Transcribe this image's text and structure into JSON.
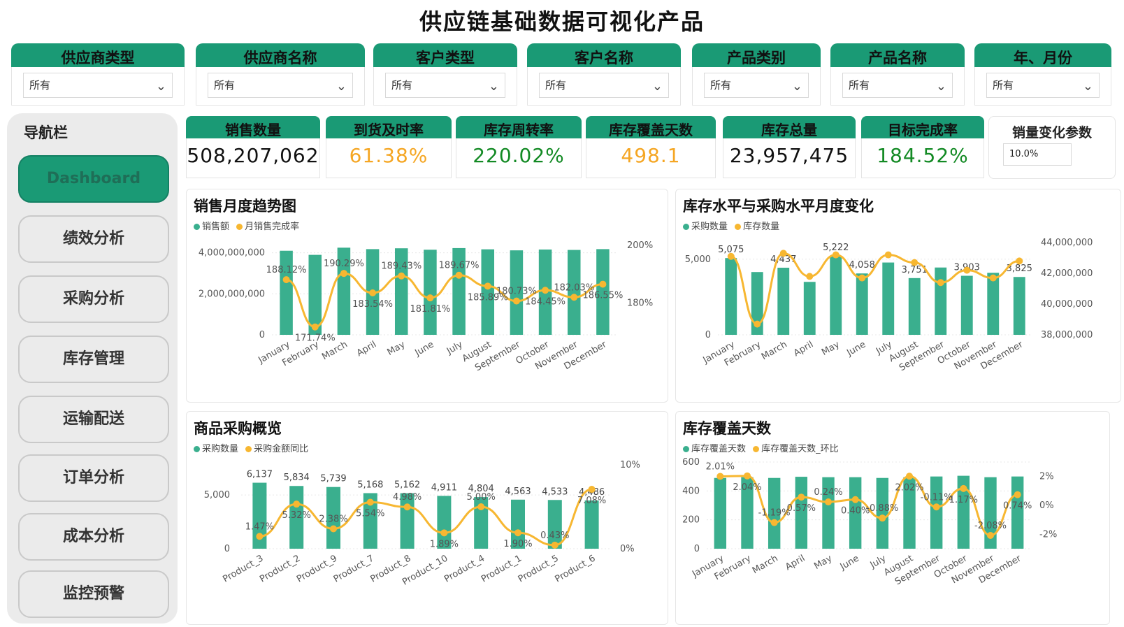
{
  "title": "供应链基础数据可视化产品",
  "filters": [
    {
      "label": "供应商类型",
      "value": "所有"
    },
    {
      "label": "供应商名称",
      "value": "所有"
    },
    {
      "label": "客户类型",
      "value": "所有"
    },
    {
      "label": "客户名称",
      "value": "所有"
    },
    {
      "label": "产品类别",
      "value": "所有"
    },
    {
      "label": "产品名称",
      "value": "所有"
    },
    {
      "label": "年、月份",
      "value": "所有"
    }
  ],
  "nav": {
    "title": "导航栏",
    "items": [
      "Dashboard",
      "绩效分析",
      "采购分析",
      "库存管理",
      "运输配送",
      "订单分析",
      "成本分析",
      "监控预警"
    ]
  },
  "kpis": [
    {
      "label": "销售数量",
      "value": "508,207,062",
      "color": "#111111"
    },
    {
      "label": "到货及时率",
      "value": "61.38%",
      "color": "#f5a623"
    },
    {
      "label": "库存周转率",
      "value": "220.02%",
      "color": "#138a24"
    },
    {
      "label": "库存覆盖天数",
      "value": "498.1",
      "color": "#f5a623"
    },
    {
      "label": "库存总量",
      "value": "23,957,475",
      "color": "#111111"
    },
    {
      "label": "目标完成率",
      "value": "184.52%",
      "color": "#138a24"
    }
  ],
  "param": {
    "label": "销量变化参数",
    "value": "10.0%"
  },
  "colors": {
    "accent": "#1a9a75",
    "bar": "#3aaf8e",
    "line": "#f7b731"
  },
  "chart_data": [
    {
      "type": "bar",
      "title": "销售月度趋势图",
      "categories": [
        "January",
        "February",
        "March",
        "April",
        "May",
        "June",
        "July",
        "August",
        "September",
        "October",
        "November",
        "December"
      ],
      "series": [
        {
          "name": "销售额",
          "kind": "bar",
          "axis": "left",
          "values": [
            4100000000,
            3900000000,
            4250000000,
            4180000000,
            4220000000,
            4150000000,
            4230000000,
            4170000000,
            4120000000,
            4160000000,
            4140000000,
            4180000000
          ]
        },
        {
          "name": "月销售完成率",
          "kind": "line",
          "axis": "right",
          "values": [
            188.12,
            171.74,
            190.29,
            183.54,
            189.43,
            181.81,
            189.67,
            185.89,
            180.73,
            184.45,
            182.03,
            186.55
          ],
          "labels": [
            "188.12%",
            "171.74%",
            "190.29%",
            "183.54%",
            "189.43%",
            "181.81%",
            "189.67%",
            "185.89%",
            "180.73%",
            "184.45%",
            "182.03%",
            "186.55%"
          ]
        }
      ],
      "left_ticks": [
        "0",
        "2,000,000,000",
        "4,000,000,000"
      ],
      "right_ticks": [
        "180%",
        "200%"
      ],
      "ylim": [
        0,
        4500000000
      ],
      "y2lim": [
        169,
        201
      ],
      "y2tick_values": [
        180,
        200
      ]
    },
    {
      "type": "bar",
      "title": "库存水平与采购水平月度变化",
      "categories": [
        "January",
        "February",
        "March",
        "April",
        "May",
        "June",
        "July",
        "August",
        "September",
        "October",
        "November",
        "December"
      ],
      "series": [
        {
          "name": "采购数量",
          "kind": "bar",
          "axis": "left",
          "values": [
            5075,
            4150,
            4437,
            3500,
            5222,
            4058,
            4780,
            3751,
            4450,
            3903,
            4100,
            3825
          ],
          "labels": [
            "5,075",
            "",
            "4,437",
            "",
            "5,222",
            "4,058",
            "",
            "3,751",
            "",
            "3,903",
            "",
            "3,825"
          ]
        },
        {
          "name": "库存数量",
          "kind": "line",
          "axis": "right",
          "values": [
            43100000,
            38700000,
            43300000,
            41800000,
            43200000,
            41700000,
            43200000,
            42700000,
            41400000,
            42200000,
            41700000,
            42800000
          ]
        }
      ],
      "left_ticks": [
        "0",
        "5,000"
      ],
      "right_ticks": [
        "38,000,000",
        "40,000,000",
        "42,000,000",
        "44,000,000"
      ],
      "ylim": [
        0,
        6100
      ],
      "y2lim": [
        38000000,
        44000000
      ]
    },
    {
      "type": "bar",
      "title": "商品采购概览",
      "categories": [
        "Product_3",
        "Product_2",
        "Product_9",
        "Product_7",
        "Product_8",
        "Product_10",
        "Product_4",
        "Product_1",
        "Product_5",
        "Product_6"
      ],
      "series": [
        {
          "name": "采购数量",
          "kind": "bar",
          "axis": "left",
          "values": [
            6137,
            5834,
            5739,
            5168,
            5162,
            4911,
            4804,
            4563,
            4533,
            4486
          ],
          "labels": [
            "6,137",
            "5,834",
            "5,739",
            "5,168",
            "5,162",
            "4,911",
            "4,804",
            "4,563",
            "4,533",
            "4,486"
          ]
        },
        {
          "name": "采购金额同比",
          "kind": "line",
          "axis": "right",
          "values": [
            1.47,
            5.32,
            2.38,
            5.54,
            4.98,
            1.89,
            5.0,
            1.9,
            0.43,
            7.08
          ],
          "labels": [
            "1.47%",
            "5.32%",
            "2.38%",
            "5.54%",
            "4.98%",
            "1.89%",
            "5.00%",
            "1.90%",
            "0.43%",
            "7.08%"
          ]
        }
      ],
      "left_ticks": [
        "0",
        "5,000"
      ],
      "right_ticks": [
        "0%",
        "10%"
      ],
      "ylim": [
        0,
        7800
      ],
      "y2lim": [
        0,
        10
      ]
    },
    {
      "type": "bar",
      "title": "库存覆盖天数",
      "categories": [
        "January",
        "February",
        "March",
        "April",
        "May",
        "June",
        "July",
        "August",
        "September",
        "October",
        "November",
        "December"
      ],
      "series": [
        {
          "name": "库存覆盖天数",
          "kind": "bar",
          "axis": "left",
          "values": [
            490,
            495,
            490,
            498,
            495,
            495,
            490,
            495,
            500,
            505,
            495,
            500
          ]
        },
        {
          "name": "库存覆盖天数_环比",
          "kind": "line",
          "axis": "right",
          "values": [
            2.01,
            2.04,
            -1.19,
            0.57,
            0.24,
            0.4,
            -0.88,
            2.02,
            -0.11,
            1.17,
            -2.08,
            0.74
          ],
          "labels": [
            "2.01%",
            "2.04%",
            "-1.19%",
            "0.57%",
            "0.24%",
            "0.40%",
            "-0.88%",
            "2.02%",
            "-0.11%",
            "1.17%",
            "-2.08%",
            "0.74%"
          ]
        }
      ],
      "left_ticks": [
        "0",
        "200",
        "400",
        "600"
      ],
      "right_ticks": [
        "-2%",
        "0%",
        "2%"
      ],
      "ylim": [
        0,
        600
      ],
      "y2lim": [
        -3,
        3
      ],
      "y2tick_values": [
        -2,
        0,
        2
      ]
    }
  ]
}
